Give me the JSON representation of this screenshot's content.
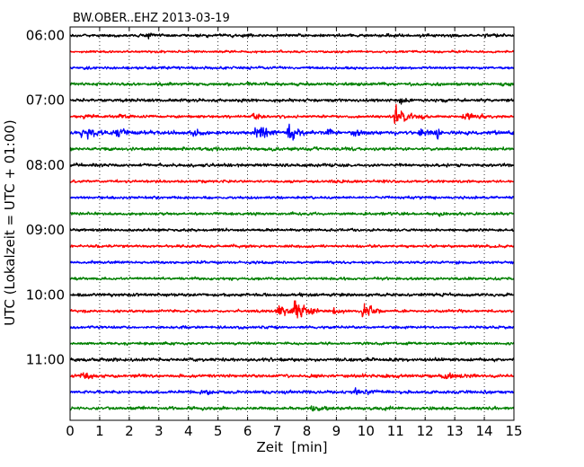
{
  "chart_data": {
    "type": "line",
    "title": "BW.OBER..EHZ 2013-03-19",
    "xlabel": "Zeit  [min]",
    "ylabel": "UTC (Lokalzeit = UTC + 01:00)",
    "xlim": [
      0,
      15
    ],
    "x_ticks": [
      "0",
      "1",
      "2",
      "3",
      "4",
      "5",
      "6",
      "7",
      "8",
      "9",
      "10",
      "11",
      "12",
      "13",
      "14",
      "15"
    ],
    "y_tick_labels": [
      "06:00",
      "07:00",
      "08:00",
      "09:00",
      "10:00",
      "11:00"
    ],
    "trace_interval_minutes": 15,
    "grid": "vertical dotted",
    "trace_colors": [
      "#000000",
      "#ff0000",
      "#0000ff",
      "#008000"
    ],
    "series": [
      {
        "start": "06:00",
        "color": "#000000",
        "amplitude": 0.35,
        "events": [
          {
            "t": 2.6,
            "amp": 0.5,
            "dur": 0.5
          },
          {
            "t": 5.8,
            "amp": 0.35,
            "dur": 0.4
          }
        ]
      },
      {
        "start": "06:15",
        "color": "#ff0000",
        "amplitude": 0.25,
        "events": []
      },
      {
        "start": "06:30",
        "color": "#0000ff",
        "amplitude": 0.3,
        "events": []
      },
      {
        "start": "06:45",
        "color": "#008000",
        "amplitude": 0.35,
        "events": []
      },
      {
        "start": "07:00",
        "color": "#000000",
        "amplitude": 0.35,
        "events": [
          {
            "t": 11.2,
            "amp": 0.9,
            "dur": 0.4
          }
        ]
      },
      {
        "start": "07:15",
        "color": "#ff0000",
        "amplitude": 0.3,
        "events": [
          {
            "t": 0.5,
            "amp": 0.6,
            "dur": 0.6
          },
          {
            "t": 1.7,
            "amp": 0.5,
            "dur": 0.6
          },
          {
            "t": 6.2,
            "amp": 0.5,
            "dur": 0.6
          },
          {
            "t": 11.0,
            "amp": 2.2,
            "dur": 1.2
          },
          {
            "t": 13.3,
            "amp": 0.8,
            "dur": 1.6
          }
        ]
      },
      {
        "start": "07:30",
        "color": "#0000ff",
        "amplitude": 0.4,
        "events": [
          {
            "t": 0.4,
            "amp": 1.7,
            "dur": 0.8
          },
          {
            "t": 1.6,
            "amp": 1.3,
            "dur": 0.7
          },
          {
            "t": 4.1,
            "amp": 1.0,
            "dur": 0.6
          },
          {
            "t": 6.3,
            "amp": 2.5,
            "dur": 0.8
          },
          {
            "t": 7.4,
            "amp": 2.0,
            "dur": 0.6
          },
          {
            "t": 8.7,
            "amp": 1.0,
            "dur": 0.6
          },
          {
            "t": 9.6,
            "amp": 0.8,
            "dur": 0.5
          },
          {
            "t": 11.8,
            "amp": 1.0,
            "dur": 0.7
          },
          {
            "t": 12.4,
            "amp": 0.9,
            "dur": 0.5
          }
        ]
      },
      {
        "start": "07:45",
        "color": "#008000",
        "amplitude": 0.35,
        "events": []
      },
      {
        "start": "08:00",
        "color": "#000000",
        "amplitude": 0.35,
        "events": []
      },
      {
        "start": "08:15",
        "color": "#ff0000",
        "amplitude": 0.3,
        "events": []
      },
      {
        "start": "08:30",
        "color": "#0000ff",
        "amplitude": 0.3,
        "events": []
      },
      {
        "start": "08:45",
        "color": "#008000",
        "amplitude": 0.3,
        "events": [
          {
            "t": 12.5,
            "amp": 0.4,
            "dur": 0.5
          }
        ]
      },
      {
        "start": "09:00",
        "color": "#000000",
        "amplitude": 0.3,
        "events": []
      },
      {
        "start": "09:15",
        "color": "#ff0000",
        "amplitude": 0.3,
        "events": []
      },
      {
        "start": "09:30",
        "color": "#0000ff",
        "amplitude": 0.3,
        "events": []
      },
      {
        "start": "09:45",
        "color": "#008000",
        "amplitude": 0.3,
        "events": []
      },
      {
        "start": "10:00",
        "color": "#000000",
        "amplitude": 0.35,
        "events": [
          {
            "t": 14.3,
            "amp": 0.5,
            "dur": 0.3
          }
        ]
      },
      {
        "start": "10:15",
        "color": "#ff0000",
        "amplitude": 0.3,
        "events": [
          {
            "t": 7.0,
            "amp": 1.0,
            "dur": 1.8
          },
          {
            "t": 7.6,
            "amp": 2.3,
            "dur": 0.8
          },
          {
            "t": 8.9,
            "amp": 0.8,
            "dur": 0.6
          },
          {
            "t": 9.9,
            "amp": 2.5,
            "dur": 0.7
          }
        ]
      },
      {
        "start": "10:30",
        "color": "#0000ff",
        "amplitude": 0.3,
        "events": []
      },
      {
        "start": "10:45",
        "color": "#008000",
        "amplitude": 0.3,
        "events": []
      },
      {
        "start": "11:00",
        "color": "#000000",
        "amplitude": 0.35,
        "events": []
      },
      {
        "start": "11:15",
        "color": "#ff0000",
        "amplitude": 0.35,
        "events": [
          {
            "t": 0.4,
            "amp": 0.6,
            "dur": 0.8
          },
          {
            "t": 12.6,
            "amp": 0.4,
            "dur": 1.5
          }
        ]
      },
      {
        "start": "11:30",
        "color": "#0000ff",
        "amplitude": 0.35,
        "events": [
          {
            "t": 4.6,
            "amp": 0.6,
            "dur": 0.4
          },
          {
            "t": 9.6,
            "amp": 0.6,
            "dur": 1.2
          }
        ]
      },
      {
        "start": "11:45",
        "color": "#008000",
        "amplitude": 0.35,
        "events": [
          {
            "t": 8.2,
            "amp": 0.6,
            "dur": 0.8
          }
        ]
      }
    ]
  }
}
